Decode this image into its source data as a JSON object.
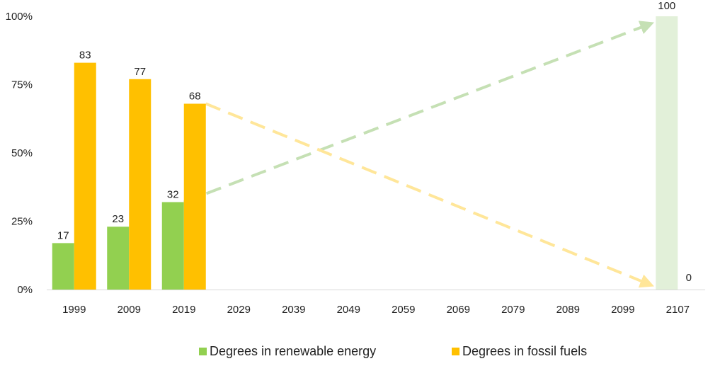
{
  "chart_data": {
    "type": "bar",
    "title": "",
    "xlabel": "",
    "ylabel": "",
    "ylim": [
      0,
      100
    ],
    "yticks": [
      "0%",
      "25%",
      "50%",
      "75%",
      "100%"
    ],
    "ytick_values": [
      0,
      25,
      50,
      75,
      100
    ],
    "categories": [
      "1999",
      "2009",
      "2019",
      "2029",
      "2039",
      "2049",
      "2059",
      "2069",
      "2079",
      "2089",
      "2099",
      "2107"
    ],
    "series": [
      {
        "name": "Degrees in renewable energy",
        "color": "#92D050",
        "values": [
          17,
          23,
          32,
          null,
          null,
          null,
          null,
          null,
          null,
          null,
          null,
          null
        ],
        "labels": [
          "17",
          "23",
          "32",
          "",
          "",
          "",
          "",
          "",
          "",
          "",
          "",
          ""
        ]
      },
      {
        "name": "Degrees in fossil fuels",
        "color": "#FFC000",
        "values": [
          83,
          77,
          68,
          null,
          null,
          null,
          null,
          null,
          null,
          null,
          null,
          null
        ],
        "labels": [
          "83",
          "77",
          "68",
          "",
          "",
          "",
          "",
          "",
          "",
          "",
          "",
          ""
        ]
      }
    ],
    "projection": {
      "category": "2107",
      "renewable_value": 100,
      "renewable_label": "100",
      "renewable_color": "#E2F0D9",
      "fossil_value": 0,
      "fossil_label": "0",
      "trend_colors": {
        "renewable": "#C5E0B4",
        "fossil": "#FFE699"
      }
    },
    "legend_position": "bottom",
    "grid": false
  }
}
